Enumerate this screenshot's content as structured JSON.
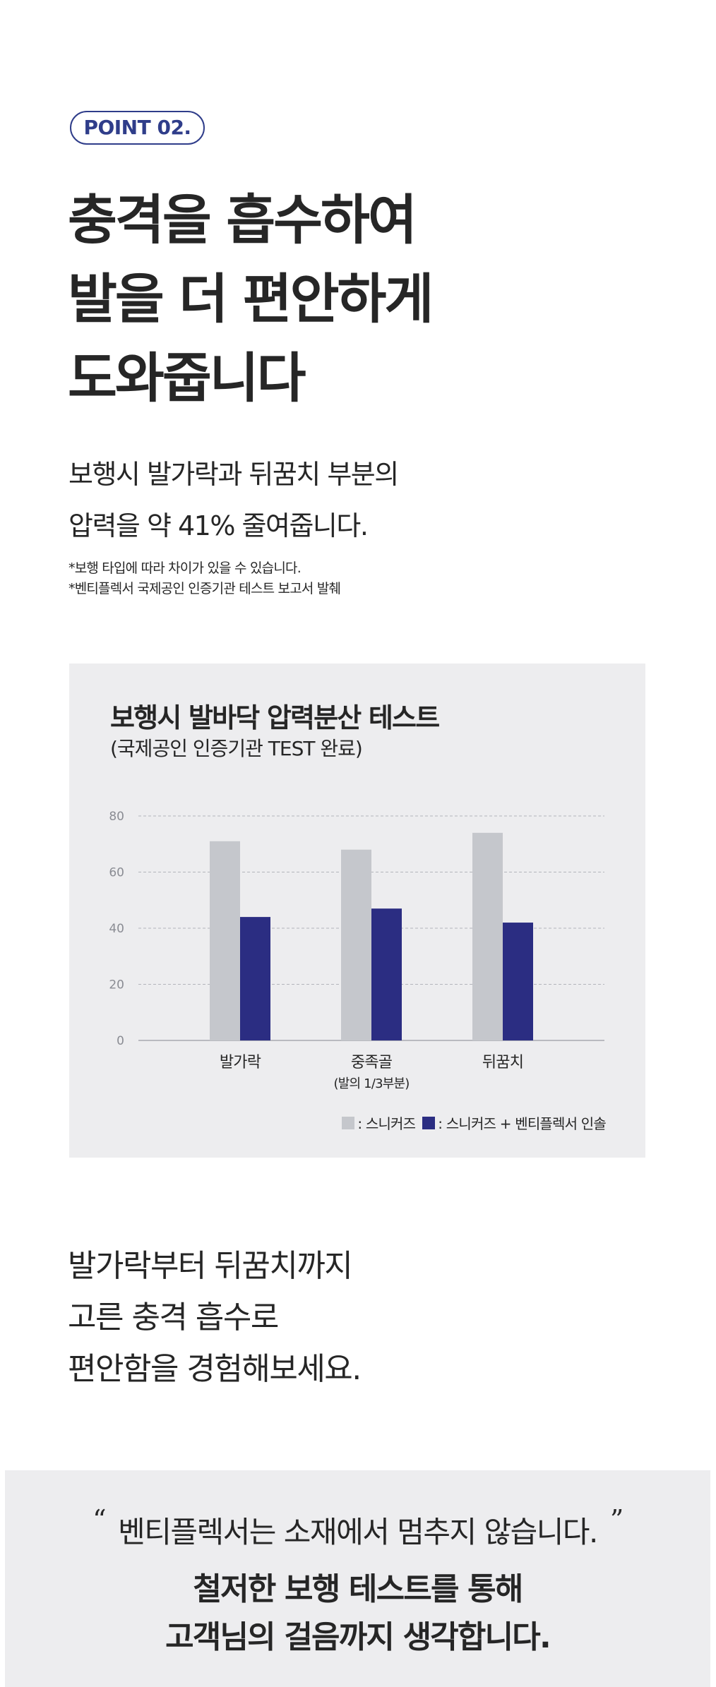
{
  "badge": "POINT 02.",
  "headline": [
    "충격을 흡수하여",
    "발을 더 편안하게",
    "도와줍니다"
  ],
  "description": [
    "보행시 발가락과 뒤꿈치 부분의",
    "압력을 약 41% 줄여줍니다."
  ],
  "notes": [
    "*보행 타입에 따라 차이가 있을 수 있습니다.",
    "*벤티플렉서 국제공인 인증기관 테스트 보고서 발췌"
  ],
  "chart": {
    "title": "보행시 발바닥 압력분산 테스트",
    "subtitle": "(국제공인 인증기관 TEST 완료)",
    "legend": {
      "item1": ": 스니커즈",
      "item2": ": 스니커즈 + 벤티플렉서 인솔"
    }
  },
  "chart_data": {
    "type": "bar",
    "categories": [
      "발가락",
      "중족골",
      "뒤꿈치"
    ],
    "category_sublabels": [
      "",
      "(발의 1/3부분)",
      ""
    ],
    "series": [
      {
        "name": ": 스니커즈",
        "values": [
          71,
          68,
          74
        ],
        "color": "#c5c7cc"
      },
      {
        "name": ": 스니커즈 + 벤티플렉서 인솔",
        "values": [
          44,
          47,
          42
        ],
        "color": "#2b2d82"
      }
    ],
    "yticks": [
      0,
      20,
      40,
      60,
      80
    ],
    "ylim": [
      0,
      80
    ],
    "grid": true,
    "legend_position": "bottom-right"
  },
  "closing": [
    "발가락부터 뒤꿈치까지",
    "고른 충격 흡수로",
    "편안함을 경험해보세요."
  ],
  "quote": {
    "open_mark": "“",
    "text": "벤티플렉서는 소재에서 멈추지 않습니다.",
    "close_mark": "”",
    "line2": "철저한 보행 테스트를 통해",
    "line3": "고객님의 걸음까지 생각합니다."
  }
}
